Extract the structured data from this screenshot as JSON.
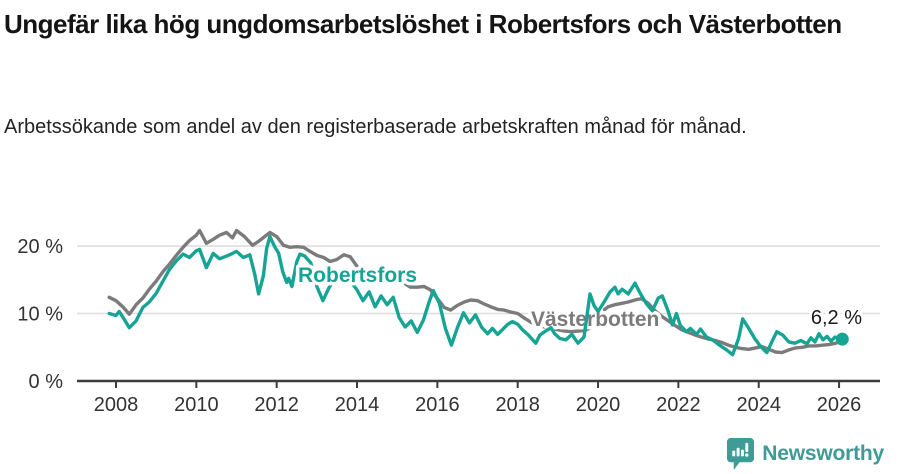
{
  "header": {
    "title": "Ungefär lika hög ungdomsarbetslöshet i Robertsfors och Västerbotten",
    "subtitle": "Arbetssökande som andel av den registerbaserade arbetskraften månad för månad."
  },
  "chart_data": {
    "type": "line",
    "unit": "%",
    "x_axis": {
      "ticks": [
        2008,
        2010,
        2012,
        2014,
        2016,
        2018,
        2020,
        2022,
        2024,
        2026
      ],
      "range": [
        2007.8,
        2026.2
      ]
    },
    "y_axis": {
      "ticks": [
        {
          "value": 0,
          "label": "0 %"
        },
        {
          "value": 10,
          "label": "10 %"
        },
        {
          "value": 20,
          "label": "20 %"
        }
      ],
      "gridlines": [
        10,
        20
      ],
      "range": [
        0,
        24
      ]
    },
    "annotation": {
      "text": "6,2 %",
      "series": "Robertsfors",
      "value": 6.2,
      "x": 2026.08
    },
    "series": [
      {
        "name": "Västerbotten",
        "color": "#7B7B7B",
        "end_dot": false,
        "points": [
          [
            2007.83,
            12.4
          ],
          [
            2008.0,
            11.9
          ],
          [
            2008.17,
            11.0
          ],
          [
            2008.33,
            9.9
          ],
          [
            2008.5,
            11.3
          ],
          [
            2008.67,
            12.3
          ],
          [
            2008.83,
            13.6
          ],
          [
            2009.0,
            14.8
          ],
          [
            2009.17,
            16.2
          ],
          [
            2009.33,
            17.3
          ],
          [
            2009.5,
            18.6
          ],
          [
            2009.67,
            19.8
          ],
          [
            2009.83,
            20.8
          ],
          [
            2010.0,
            21.6
          ],
          [
            2010.08,
            22.3
          ],
          [
            2010.25,
            20.4
          ],
          [
            2010.42,
            21.0
          ],
          [
            2010.58,
            21.6
          ],
          [
            2010.75,
            22.0
          ],
          [
            2010.9,
            21.2
          ],
          [
            2011.0,
            22.3
          ],
          [
            2011.2,
            21.4
          ],
          [
            2011.4,
            20.1
          ],
          [
            2011.55,
            20.7
          ],
          [
            2011.7,
            21.4
          ],
          [
            2011.83,
            22.0
          ],
          [
            2012.0,
            21.4
          ],
          [
            2012.17,
            20.1
          ],
          [
            2012.33,
            19.8
          ],
          [
            2012.5,
            19.9
          ],
          [
            2012.67,
            19.8
          ],
          [
            2012.83,
            19.2
          ],
          [
            2013.0,
            18.6
          ],
          [
            2013.17,
            18.3
          ],
          [
            2013.33,
            17.7
          ],
          [
            2013.5,
            18.0
          ],
          [
            2013.67,
            18.7
          ],
          [
            2013.83,
            18.4
          ],
          [
            2014.0,
            17.0
          ],
          [
            2014.17,
            16.6
          ],
          [
            2014.33,
            16.4
          ],
          [
            2014.5,
            16.2
          ],
          [
            2014.67,
            15.3
          ],
          [
            2014.83,
            15.0
          ],
          [
            2015.0,
            14.7
          ],
          [
            2015.17,
            14.5
          ],
          [
            2015.33,
            13.9
          ],
          [
            2015.5,
            13.9
          ],
          [
            2015.67,
            14.0
          ],
          [
            2015.83,
            13.5
          ],
          [
            2016.0,
            12.2
          ],
          [
            2016.17,
            10.9
          ],
          [
            2016.33,
            10.5
          ],
          [
            2016.5,
            11.2
          ],
          [
            2016.67,
            11.7
          ],
          [
            2016.83,
            12.0
          ],
          [
            2017.0,
            11.9
          ],
          [
            2017.17,
            11.4
          ],
          [
            2017.33,
            11.0
          ],
          [
            2017.5,
            10.6
          ],
          [
            2017.67,
            10.5
          ],
          [
            2017.83,
            10.2
          ],
          [
            2018.0,
            10.0
          ],
          [
            2018.17,
            9.3
          ],
          [
            2018.33,
            8.7
          ],
          [
            2018.5,
            8.2
          ],
          [
            2018.67,
            8.0
          ],
          [
            2018.83,
            7.8
          ],
          [
            2019.0,
            7.6
          ],
          [
            2019.17,
            7.4
          ],
          [
            2019.33,
            7.3
          ],
          [
            2019.5,
            7.4
          ],
          [
            2019.67,
            7.5
          ],
          [
            2019.83,
            7.9
          ],
          [
            2019.92,
            8.6
          ],
          [
            2020.08,
            10.2
          ],
          [
            2020.25,
            11.0
          ],
          [
            2020.42,
            11.3
          ],
          [
            2020.58,
            11.5
          ],
          [
            2020.75,
            11.7
          ],
          [
            2020.92,
            12.0
          ],
          [
            2021.08,
            12.2
          ],
          [
            2021.25,
            11.5
          ],
          [
            2021.42,
            10.4
          ],
          [
            2021.58,
            9.6
          ],
          [
            2021.75,
            8.9
          ],
          [
            2021.92,
            8.2
          ],
          [
            2022.08,
            7.6
          ],
          [
            2022.25,
            7.2
          ],
          [
            2022.42,
            6.8
          ],
          [
            2022.58,
            6.5
          ],
          [
            2022.75,
            6.2
          ],
          [
            2022.92,
            6.0
          ],
          [
            2023.08,
            5.7
          ],
          [
            2023.25,
            5.3
          ],
          [
            2023.42,
            5.0
          ],
          [
            2023.58,
            4.8
          ],
          [
            2023.75,
            4.7
          ],
          [
            2023.92,
            4.9
          ],
          [
            2024.08,
            5.1
          ],
          [
            2024.25,
            4.7
          ],
          [
            2024.42,
            4.3
          ],
          [
            2024.58,
            4.2
          ],
          [
            2024.75,
            4.6
          ],
          [
            2024.92,
            4.9
          ],
          [
            2025.08,
            5.0
          ],
          [
            2025.25,
            5.2
          ],
          [
            2025.42,
            5.2
          ],
          [
            2025.58,
            5.3
          ],
          [
            2025.75,
            5.4
          ],
          [
            2025.92,
            5.6
          ],
          [
            2026.0,
            5.8
          ]
        ]
      },
      {
        "name": "Robertsfors",
        "color": "#17A494",
        "end_dot": true,
        "points": [
          [
            2007.83,
            10.0
          ],
          [
            2008.0,
            9.7
          ],
          [
            2008.08,
            10.3
          ],
          [
            2008.2,
            9.2
          ],
          [
            2008.33,
            7.9
          ],
          [
            2008.5,
            8.9
          ],
          [
            2008.67,
            10.9
          ],
          [
            2008.83,
            11.7
          ],
          [
            2009.0,
            13.0
          ],
          [
            2009.17,
            14.8
          ],
          [
            2009.33,
            16.5
          ],
          [
            2009.5,
            17.8
          ],
          [
            2009.67,
            18.8
          ],
          [
            2009.83,
            18.3
          ],
          [
            2010.0,
            19.3
          ],
          [
            2010.08,
            19.5
          ],
          [
            2010.25,
            16.8
          ],
          [
            2010.42,
            18.9
          ],
          [
            2010.58,
            18.1
          ],
          [
            2010.75,
            18.5
          ],
          [
            2010.9,
            18.9
          ],
          [
            2011.0,
            19.2
          ],
          [
            2011.17,
            18.3
          ],
          [
            2011.33,
            18.7
          ],
          [
            2011.45,
            15.9
          ],
          [
            2011.55,
            12.9
          ],
          [
            2011.67,
            15.6
          ],
          [
            2011.75,
            19.6
          ],
          [
            2011.83,
            21.4
          ],
          [
            2011.95,
            19.9
          ],
          [
            2012.05,
            18.9
          ],
          [
            2012.15,
            16.2
          ],
          [
            2012.25,
            14.6
          ],
          [
            2012.3,
            15.2
          ],
          [
            2012.38,
            14.0
          ],
          [
            2012.5,
            17.7
          ],
          [
            2012.58,
            18.8
          ],
          [
            2012.7,
            18.5
          ],
          [
            2012.85,
            17.5
          ],
          [
            2013.0,
            14.0
          ],
          [
            2013.15,
            11.9
          ],
          [
            2013.3,
            13.8
          ],
          [
            2013.45,
            15.2
          ],
          [
            2013.6,
            15.5
          ],
          [
            2013.75,
            15.2
          ],
          [
            2013.9,
            14.3
          ],
          [
            2014.0,
            13.5
          ],
          [
            2014.15,
            11.9
          ],
          [
            2014.3,
            13.2
          ],
          [
            2014.45,
            11.0
          ],
          [
            2014.6,
            12.6
          ],
          [
            2014.75,
            11.3
          ],
          [
            2014.9,
            12.4
          ],
          [
            2015.05,
            9.4
          ],
          [
            2015.2,
            8.0
          ],
          [
            2015.35,
            8.9
          ],
          [
            2015.5,
            7.2
          ],
          [
            2015.65,
            9.0
          ],
          [
            2015.8,
            11.8
          ],
          [
            2015.9,
            13.4
          ],
          [
            2016.05,
            11.5
          ],
          [
            2016.2,
            7.8
          ],
          [
            2016.35,
            5.3
          ],
          [
            2016.5,
            7.9
          ],
          [
            2016.65,
            10.1
          ],
          [
            2016.8,
            8.6
          ],
          [
            2016.95,
            9.8
          ],
          [
            2017.1,
            8.0
          ],
          [
            2017.25,
            7.0
          ],
          [
            2017.37,
            7.8
          ],
          [
            2017.5,
            6.9
          ],
          [
            2017.62,
            7.6
          ],
          [
            2017.75,
            8.4
          ],
          [
            2017.87,
            8.8
          ],
          [
            2018.0,
            8.4
          ],
          [
            2018.12,
            7.6
          ],
          [
            2018.25,
            6.9
          ],
          [
            2018.45,
            5.6
          ],
          [
            2018.55,
            6.8
          ],
          [
            2018.67,
            7.3
          ],
          [
            2018.83,
            7.9
          ],
          [
            2018.92,
            7.0
          ],
          [
            2019.05,
            6.3
          ],
          [
            2019.2,
            6.1
          ],
          [
            2019.35,
            6.9
          ],
          [
            2019.5,
            5.6
          ],
          [
            2019.65,
            6.5
          ],
          [
            2019.8,
            12.9
          ],
          [
            2019.9,
            11.2
          ],
          [
            2020.0,
            10.3
          ],
          [
            2020.15,
            11.7
          ],
          [
            2020.3,
            13.2
          ],
          [
            2020.42,
            13.9
          ],
          [
            2020.5,
            12.9
          ],
          [
            2020.6,
            13.6
          ],
          [
            2020.75,
            12.9
          ],
          [
            2020.92,
            14.5
          ],
          [
            2021.05,
            13.0
          ],
          [
            2021.2,
            11.5
          ],
          [
            2021.35,
            10.4
          ],
          [
            2021.5,
            12.3
          ],
          [
            2021.6,
            12.6
          ],
          [
            2021.75,
            10.3
          ],
          [
            2021.85,
            8.3
          ],
          [
            2021.95,
            10.0
          ],
          [
            2022.05,
            8.2
          ],
          [
            2022.2,
            7.3
          ],
          [
            2022.3,
            7.8
          ],
          [
            2022.45,
            6.9
          ],
          [
            2022.55,
            7.7
          ],
          [
            2022.7,
            6.5
          ],
          [
            2022.85,
            6.1
          ],
          [
            2023.0,
            5.4
          ],
          [
            2023.2,
            4.6
          ],
          [
            2023.35,
            3.9
          ],
          [
            2023.5,
            6.3
          ],
          [
            2023.6,
            9.2
          ],
          [
            2023.75,
            7.8
          ],
          [
            2023.9,
            6.3
          ],
          [
            2024.05,
            5.1
          ],
          [
            2024.2,
            4.2
          ],
          [
            2024.35,
            6.1
          ],
          [
            2024.45,
            7.3
          ],
          [
            2024.6,
            6.8
          ],
          [
            2024.75,
            5.8
          ],
          [
            2024.9,
            5.6
          ],
          [
            2025.05,
            6.0
          ],
          [
            2025.2,
            5.5
          ],
          [
            2025.3,
            6.4
          ],
          [
            2025.4,
            5.8
          ],
          [
            2025.5,
            7.0
          ],
          [
            2025.6,
            6.1
          ],
          [
            2025.7,
            6.6
          ],
          [
            2025.8,
            5.9
          ],
          [
            2025.9,
            6.5
          ],
          [
            2026.0,
            6.3
          ],
          [
            2026.08,
            6.2
          ]
        ]
      }
    ]
  },
  "footer": {
    "brand": "Newsworthy",
    "logo_color": "#3E9B95"
  }
}
